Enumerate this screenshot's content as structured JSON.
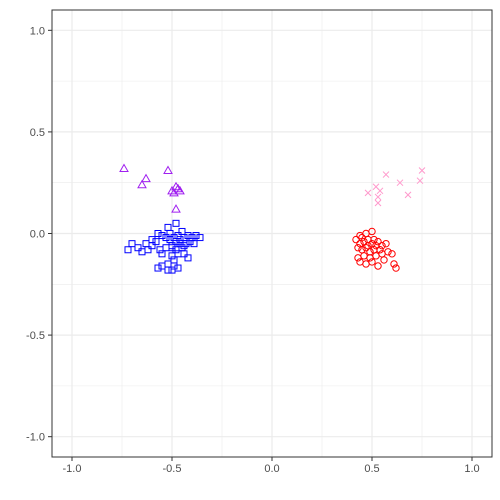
{
  "chart_data": {
    "type": "scatter",
    "xlim": [
      -1.1,
      1.1
    ],
    "ylim": [
      -1.1,
      1.1
    ],
    "x_ticks": [
      {
        "value": -1.0,
        "label": "-1.0"
      },
      {
        "value": -0.5,
        "label": "-0.5"
      },
      {
        "value": 0.0,
        "label": "0.0"
      },
      {
        "value": 0.5,
        "label": "0.5"
      },
      {
        "value": 1.0,
        "label": "1.0"
      }
    ],
    "y_ticks": [
      {
        "value": 1.0,
        "label": "1.0"
      },
      {
        "value": 0.5,
        "label": "0.5"
      },
      {
        "value": 0.0,
        "label": "0.0"
      },
      {
        "value": -0.5,
        "label": "-0.5"
      },
      {
        "value": -1.0,
        "label": "-1.0"
      }
    ],
    "grid": true,
    "background": "#ffffff",
    "grid_color": "#ebebeb",
    "series": [
      {
        "shape": "triangle",
        "color": "#a020f0",
        "points": [
          [
            -0.74,
            0.32
          ],
          [
            -0.63,
            0.27
          ],
          [
            -0.65,
            0.24
          ],
          [
            -0.52,
            0.31
          ],
          [
            -0.48,
            0.23
          ],
          [
            -0.5,
            0.21
          ],
          [
            -0.47,
            0.22
          ],
          [
            -0.49,
            0.2
          ],
          [
            -0.46,
            0.21
          ],
          [
            -0.48,
            0.12
          ]
        ]
      },
      {
        "shape": "square",
        "color": "#0000ff",
        "points": [
          [
            -0.57,
            0.0
          ],
          [
            -0.52,
            0.03
          ],
          [
            -0.48,
            0.05
          ],
          [
            -0.45,
            0.01
          ],
          [
            -0.55,
            -0.01
          ],
          [
            -0.6,
            -0.03
          ],
          [
            -0.63,
            -0.05
          ],
          [
            -0.58,
            -0.04
          ],
          [
            -0.53,
            -0.02
          ],
          [
            -0.51,
            -0.03
          ],
          [
            -0.49,
            -0.02
          ],
          [
            -0.47,
            -0.01
          ],
          [
            -0.44,
            -0.02
          ],
          [
            -0.42,
            -0.01
          ],
          [
            -0.4,
            -0.02
          ],
          [
            -0.38,
            -0.01
          ],
          [
            -0.36,
            -0.02
          ],
          [
            -0.5,
            -0.06
          ],
          [
            -0.46,
            -0.05
          ],
          [
            -0.43,
            -0.05
          ],
          [
            -0.41,
            -0.04
          ],
          [
            -0.39,
            -0.05
          ],
          [
            -0.45,
            -0.07
          ],
          [
            -0.48,
            -0.08
          ],
          [
            -0.5,
            -0.07
          ],
          [
            -0.53,
            -0.07
          ],
          [
            -0.56,
            -0.08
          ],
          [
            -0.6,
            -0.06
          ],
          [
            -0.62,
            -0.08
          ],
          [
            -0.65,
            -0.09
          ],
          [
            -0.67,
            -0.07
          ],
          [
            -0.7,
            -0.05
          ],
          [
            -0.72,
            -0.08
          ],
          [
            -0.55,
            -0.1
          ],
          [
            -0.5,
            -0.11
          ],
          [
            -0.47,
            -0.1
          ],
          [
            -0.44,
            -0.1
          ],
          [
            -0.42,
            -0.12
          ],
          [
            -0.49,
            -0.13
          ],
          [
            -0.52,
            -0.15
          ],
          [
            -0.55,
            -0.16
          ],
          [
            -0.49,
            -0.16
          ],
          [
            -0.47,
            -0.17
          ],
          [
            -0.57,
            -0.17
          ],
          [
            -0.52,
            -0.18
          ],
          [
            -0.5,
            -0.18
          ],
          [
            -0.48,
            -0.04
          ],
          [
            -0.46,
            -0.03
          ],
          [
            -0.44,
            -0.06
          ],
          [
            -0.51,
            0.0
          ]
        ]
      },
      {
        "shape": "circle",
        "color": "#ff0000",
        "points": [
          [
            0.44,
            -0.05
          ],
          [
            0.46,
            -0.04
          ],
          [
            0.48,
            -0.03
          ],
          [
            0.5,
            -0.05
          ],
          [
            0.52,
            -0.06
          ],
          [
            0.43,
            -0.07
          ],
          [
            0.45,
            -0.08
          ],
          [
            0.47,
            -0.07
          ],
          [
            0.49,
            -0.09
          ],
          [
            0.51,
            -0.08
          ],
          [
            0.53,
            -0.04
          ],
          [
            0.55,
            -0.06
          ],
          [
            0.57,
            -0.05
          ],
          [
            0.42,
            -0.03
          ],
          [
            0.44,
            -0.01
          ],
          [
            0.47,
            0.0
          ],
          [
            0.5,
            0.01
          ],
          [
            0.46,
            -0.11
          ],
          [
            0.49,
            -0.12
          ],
          [
            0.52,
            -0.11
          ],
          [
            0.55,
            -0.1
          ],
          [
            0.58,
            -0.09
          ],
          [
            0.6,
            -0.1
          ],
          [
            0.44,
            -0.14
          ],
          [
            0.47,
            -0.15
          ],
          [
            0.5,
            -0.14
          ],
          [
            0.53,
            -0.16
          ],
          [
            0.61,
            -0.15
          ],
          [
            0.62,
            -0.17
          ],
          [
            0.45,
            -0.02
          ],
          [
            0.48,
            -0.06
          ],
          [
            0.51,
            -0.03
          ],
          [
            0.54,
            -0.08
          ],
          [
            0.56,
            -0.13
          ],
          [
            0.43,
            -0.12
          ]
        ]
      },
      {
        "shape": "cross",
        "color": "#ff99cc",
        "points": [
          [
            0.48,
            0.2
          ],
          [
            0.52,
            0.23
          ],
          [
            0.53,
            0.18
          ],
          [
            0.53,
            0.15
          ],
          [
            0.54,
            0.21
          ],
          [
            0.57,
            0.29
          ],
          [
            0.64,
            0.25
          ],
          [
            0.68,
            0.19
          ],
          [
            0.74,
            0.26
          ],
          [
            0.75,
            0.31
          ]
        ]
      }
    ]
  }
}
